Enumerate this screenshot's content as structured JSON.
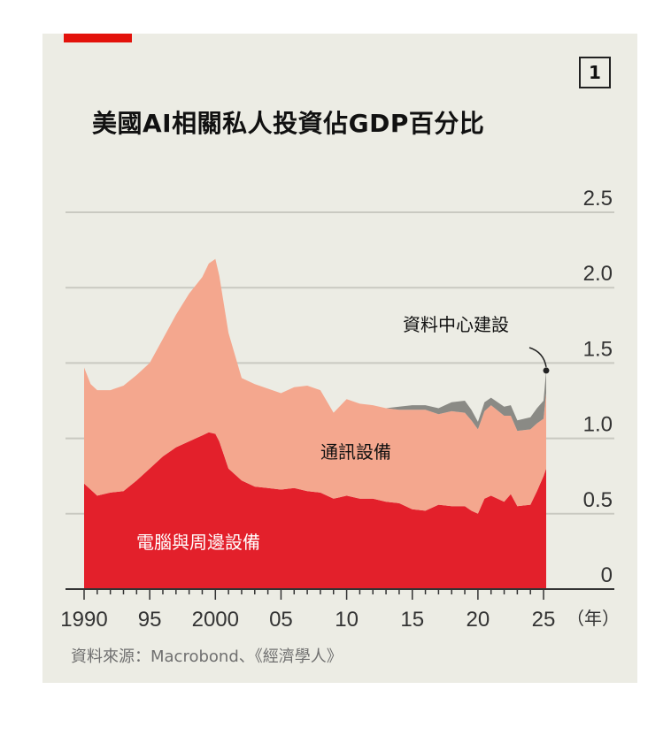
{
  "badge": "1",
  "title": "美國AI相關私人投資佔GDP百分比",
  "source": "資料來源：Macrobond、《經濟學人》",
  "x_unit": "（年）",
  "chart_data": {
    "type": "area",
    "stacked": true,
    "title": "美國AI相關私人投資佔GDP百分比",
    "xlabel": "",
    "ylabel": "",
    "ylim": [
      0,
      2.5
    ],
    "xlim": [
      1990,
      2025.2
    ],
    "y_ticks": [
      0,
      0.5,
      1.0,
      1.5,
      2.0,
      2.5
    ],
    "y_tick_labels": [
      "0",
      "0.5",
      "1.0",
      "1.5",
      "2.0",
      "2.5"
    ],
    "x_ticks": [
      1990,
      1995,
      2000,
      2005,
      2010,
      2015,
      2020,
      2025
    ],
    "x_tick_labels": [
      "1990",
      "95",
      "2000",
      "05",
      "10",
      "15",
      "20",
      "25"
    ],
    "grid": true,
    "x": [
      1990,
      1990.5,
      1991,
      1992,
      1993,
      1994,
      1995,
      1996,
      1997,
      1998,
      1999,
      1999.5,
      2000,
      2000.3,
      2001,
      2002,
      2003,
      2004,
      2005,
      2006,
      2007,
      2008,
      2009,
      2010,
      2011,
      2012,
      2013,
      2014,
      2015,
      2016,
      2017,
      2018,
      2019,
      2019.5,
      2020,
      2020.5,
      2021,
      2022,
      2022.5,
      2023,
      2024,
      2024.5,
      2025,
      2025.2
    ],
    "series": [
      {
        "name": "電腦與周邊設備",
        "color": "#e3202b",
        "values": [
          0.7,
          0.66,
          0.62,
          0.64,
          0.65,
          0.72,
          0.8,
          0.88,
          0.94,
          0.98,
          1.02,
          1.04,
          1.03,
          0.98,
          0.8,
          0.72,
          0.68,
          0.67,
          0.66,
          0.67,
          0.65,
          0.64,
          0.6,
          0.62,
          0.6,
          0.6,
          0.58,
          0.57,
          0.53,
          0.52,
          0.56,
          0.55,
          0.55,
          0.52,
          0.5,
          0.6,
          0.62,
          0.58,
          0.63,
          0.55,
          0.56,
          0.65,
          0.75,
          0.8
        ]
      },
      {
        "name": "通訊設備",
        "color": "#f4a78e",
        "values": [
          0.77,
          0.7,
          0.7,
          0.68,
          0.7,
          0.7,
          0.7,
          0.78,
          0.88,
          0.98,
          1.05,
          1.12,
          1.16,
          1.1,
          0.9,
          0.68,
          0.68,
          0.66,
          0.64,
          0.67,
          0.7,
          0.68,
          0.57,
          0.64,
          0.63,
          0.62,
          0.62,
          0.62,
          0.66,
          0.67,
          0.6,
          0.63,
          0.62,
          0.6,
          0.56,
          0.58,
          0.6,
          0.57,
          0.52,
          0.5,
          0.5,
          0.45,
          0.38,
          0.5
        ]
      },
      {
        "name": "資料中心建設",
        "color": "#8a8a85",
        "values": [
          0,
          0,
          0,
          0,
          0,
          0,
          0,
          0,
          0,
          0,
          0,
          0,
          0,
          0,
          0,
          0,
          0,
          0,
          0,
          0,
          0,
          0,
          0,
          0,
          0,
          0,
          0,
          0.02,
          0.03,
          0.03,
          0.04,
          0.06,
          0.08,
          0.07,
          0.05,
          0.06,
          0.05,
          0.06,
          0.07,
          0.07,
          0.08,
          0.1,
          0.12,
          0.15
        ]
      }
    ],
    "annotations": [
      "電腦與周邊設備",
      "通訊設備",
      "資料中心建設"
    ]
  }
}
